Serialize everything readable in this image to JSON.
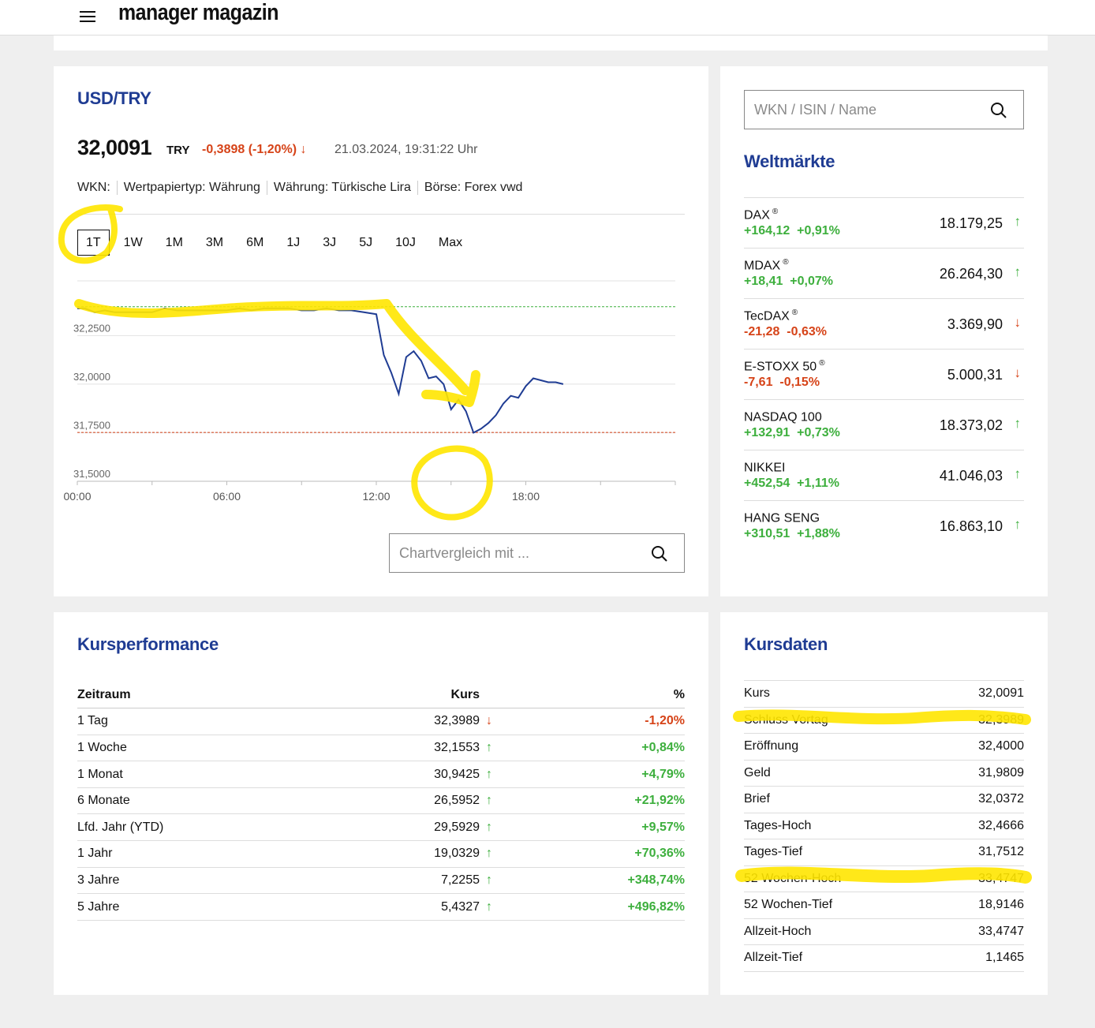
{
  "header": {
    "logo": "manager magazin"
  },
  "quote": {
    "title": "USD/TRY",
    "price": "32,0091",
    "currency": "TRY",
    "change": "-0,3898 (-1,20%) ↓",
    "timestamp": "21.03.2024, 19:31:22 Uhr",
    "meta": [
      "WKN:",
      "Wertpapiertyp: Währung",
      "Währung: Türkische Lira",
      "Börse: Forex vwd"
    ],
    "ranges": [
      "1T",
      "1W",
      "1M",
      "3M",
      "6M",
      "1J",
      "3J",
      "5J",
      "10J",
      "Max"
    ],
    "active_range": "1T",
    "compare_placeholder": "Chartvergleich mit ..."
  },
  "chart_data": {
    "type": "line",
    "xlabel": "",
    "ylabel": "",
    "x_ticks": [
      "00:00",
      "06:00",
      "12:00",
      "18:00"
    ],
    "y_ticks": [
      "32,2500",
      "32,0000",
      "31,7500",
      "31,5000"
    ],
    "ylim": [
      31.5,
      32.54
    ],
    "xlim": [
      0,
      24
    ],
    "reference_high": 32.3989,
    "reference_low": 31.7512,
    "series": [
      {
        "x": [
          0,
          0.3,
          0.7,
          1.1,
          1.5,
          2.0,
          2.5,
          3.0,
          3.5,
          4.0,
          4.5,
          5.0,
          5.5,
          6.0,
          6.5,
          7.0,
          7.5,
          8.0,
          8.5,
          9.0,
          9.5,
          10.0,
          10.5,
          11.0,
          11.5,
          12.0,
          12.3,
          12.6,
          12.9,
          13.2,
          13.5,
          13.8,
          14.1,
          14.4,
          14.7,
          15.0,
          15.3,
          15.6,
          15.9,
          16.2,
          16.5,
          16.8,
          17.1,
          17.4,
          17.7,
          18.0,
          18.3,
          18.6,
          18.9,
          19.2,
          19.5
        ],
        "values": [
          32.39,
          32.39,
          32.37,
          32.38,
          32.37,
          32.37,
          32.37,
          32.37,
          32.39,
          32.38,
          32.38,
          32.38,
          32.38,
          32.38,
          32.39,
          32.38,
          32.39,
          32.39,
          32.39,
          32.38,
          32.38,
          32.39,
          32.38,
          32.38,
          32.37,
          32.36,
          32.15,
          32.06,
          31.95,
          32.14,
          32.17,
          32.12,
          32.03,
          32.04,
          32.0,
          31.87,
          31.92,
          31.86,
          31.75,
          31.77,
          31.8,
          31.84,
          31.9,
          31.94,
          31.93,
          31.99,
          32.03,
          32.02,
          32.01,
          32.01,
          32.0
        ]
      }
    ]
  },
  "markets": {
    "title": "Weltmärkte",
    "search_placeholder": "WKN / ISIN / Name",
    "items": [
      {
        "name": "DAX",
        "reg": "®",
        "abs": "+164,12",
        "pct": "+0,91%",
        "value": "18.179,25",
        "arrow": "↑",
        "dir": "up"
      },
      {
        "name": "MDAX",
        "reg": "®",
        "abs": "+18,41",
        "pct": "+0,07%",
        "value": "26.264,30",
        "arrow": "↑",
        "dir": "up"
      },
      {
        "name": "TecDAX",
        "reg": "®",
        "abs": "-21,28",
        "pct": "-0,63%",
        "value": "3.369,90",
        "arrow": "↓",
        "dir": "down"
      },
      {
        "name": "E-STOXX 50",
        "reg": "®",
        "abs": "-7,61",
        "pct": "-0,15%",
        "value": "5.000,31",
        "arrow": "↓",
        "dir": "down"
      },
      {
        "name": "NASDAQ 100",
        "reg": "",
        "abs": "+132,91",
        "pct": "+0,73%",
        "value": "18.373,02",
        "arrow": "↑",
        "dir": "up"
      },
      {
        "name": "NIKKEI",
        "reg": "",
        "abs": "+452,54",
        "pct": "+1,11%",
        "value": "41.046,03",
        "arrow": "↑",
        "dir": "up"
      },
      {
        "name": "HANG SENG",
        "reg": "",
        "abs": "+310,51",
        "pct": "+1,88%",
        "value": "16.863,10",
        "arrow": "↑",
        "dir": "up"
      }
    ]
  },
  "performance": {
    "title": "Kursperformance",
    "headers": [
      "Zeitraum",
      "Kurs",
      "%"
    ],
    "rows": [
      {
        "period": "1 Tag",
        "kurs": "32,3989",
        "arrow": "↓",
        "pct": "-1,20%",
        "dir": "down"
      },
      {
        "period": "1 Woche",
        "kurs": "32,1553",
        "arrow": "↑",
        "pct": "+0,84%",
        "dir": "up"
      },
      {
        "period": "1 Monat",
        "kurs": "30,9425",
        "arrow": "↑",
        "pct": "+4,79%",
        "dir": "up"
      },
      {
        "period": "6 Monate",
        "kurs": "26,5952",
        "arrow": "↑",
        "pct": "+21,92%",
        "dir": "up"
      },
      {
        "period": "Lfd. Jahr (YTD)",
        "kurs": "29,5929",
        "arrow": "↑",
        "pct": "+9,57%",
        "dir": "up"
      },
      {
        "period": "1 Jahr",
        "kurs": "19,0329",
        "arrow": "↑",
        "pct": "+70,36%",
        "dir": "up"
      },
      {
        "period": "3 Jahre",
        "kurs": "7,2255",
        "arrow": "↑",
        "pct": "+348,74%",
        "dir": "up"
      },
      {
        "period": "5 Jahre",
        "kurs": "5,4327",
        "arrow": "↑",
        "pct": "+496,82%",
        "dir": "up"
      }
    ]
  },
  "kursdaten": {
    "title": "Kursdaten",
    "rows": [
      {
        "label": "Kurs",
        "value": "32,0091"
      },
      {
        "label": "Schluss Vortag",
        "value": "32,3989"
      },
      {
        "label": "Eröffnung",
        "value": "32,4000"
      },
      {
        "label": "Geld",
        "value": "31,9809"
      },
      {
        "label": "Brief",
        "value": "32,0372"
      },
      {
        "label": "Tages-Hoch",
        "value": "32,4666"
      },
      {
        "label": "Tages-Tief",
        "value": "31,7512"
      },
      {
        "label": "52 Wochen-Hoch",
        "value": "33,4747"
      },
      {
        "label": "52 Wochen-Tief",
        "value": "18,9146"
      },
      {
        "label": "Allzeit-Hoch",
        "value": "33,4747"
      },
      {
        "label": "Allzeit-Tief",
        "value": "1,1465"
      }
    ]
  },
  "colors": {
    "accent": "#1f3c93",
    "up": "#3daf3d",
    "down": "#d64318",
    "highlight": "#ffe500"
  }
}
